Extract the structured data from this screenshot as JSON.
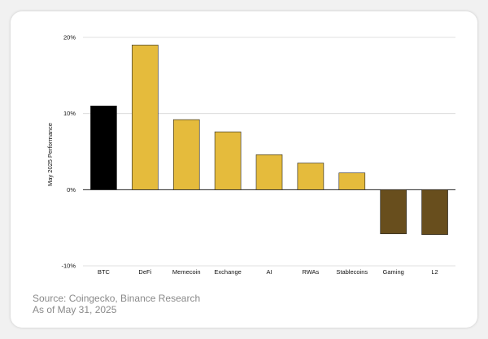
{
  "chart_data": {
    "type": "bar",
    "title": "",
    "xlabel": "",
    "ylabel": "May 2025 Performance",
    "categories": [
      "BTC",
      "DeFi",
      "Memecoin",
      "Exchange",
      "AI",
      "RWAs",
      "Stablecoins",
      "Gaming",
      "L2"
    ],
    "values": [
      11.0,
      19.0,
      9.2,
      7.6,
      4.6,
      3.5,
      2.2,
      -5.8,
      -5.9
    ],
    "bar_colors": [
      "#000000",
      "#e5bb3c",
      "#e5bb3c",
      "#e5bb3c",
      "#e5bb3c",
      "#e5bb3c",
      "#e5bb3c",
      "#684e1d",
      "#684e1d"
    ],
    "ylim": [
      -10,
      20
    ],
    "yticks": [
      -10,
      0,
      10,
      20
    ],
    "ytick_labels": [
      "-10%",
      "0%",
      "10%",
      "20%"
    ],
    "grid": true,
    "legend": "none"
  },
  "footer": {
    "source": "Source: Coingecko, Binance Research",
    "date": "As of May 31, 2025"
  },
  "colors": {
    "grid": "#d6d6d6",
    "zero_line": "#222222",
    "text": "#111111"
  }
}
